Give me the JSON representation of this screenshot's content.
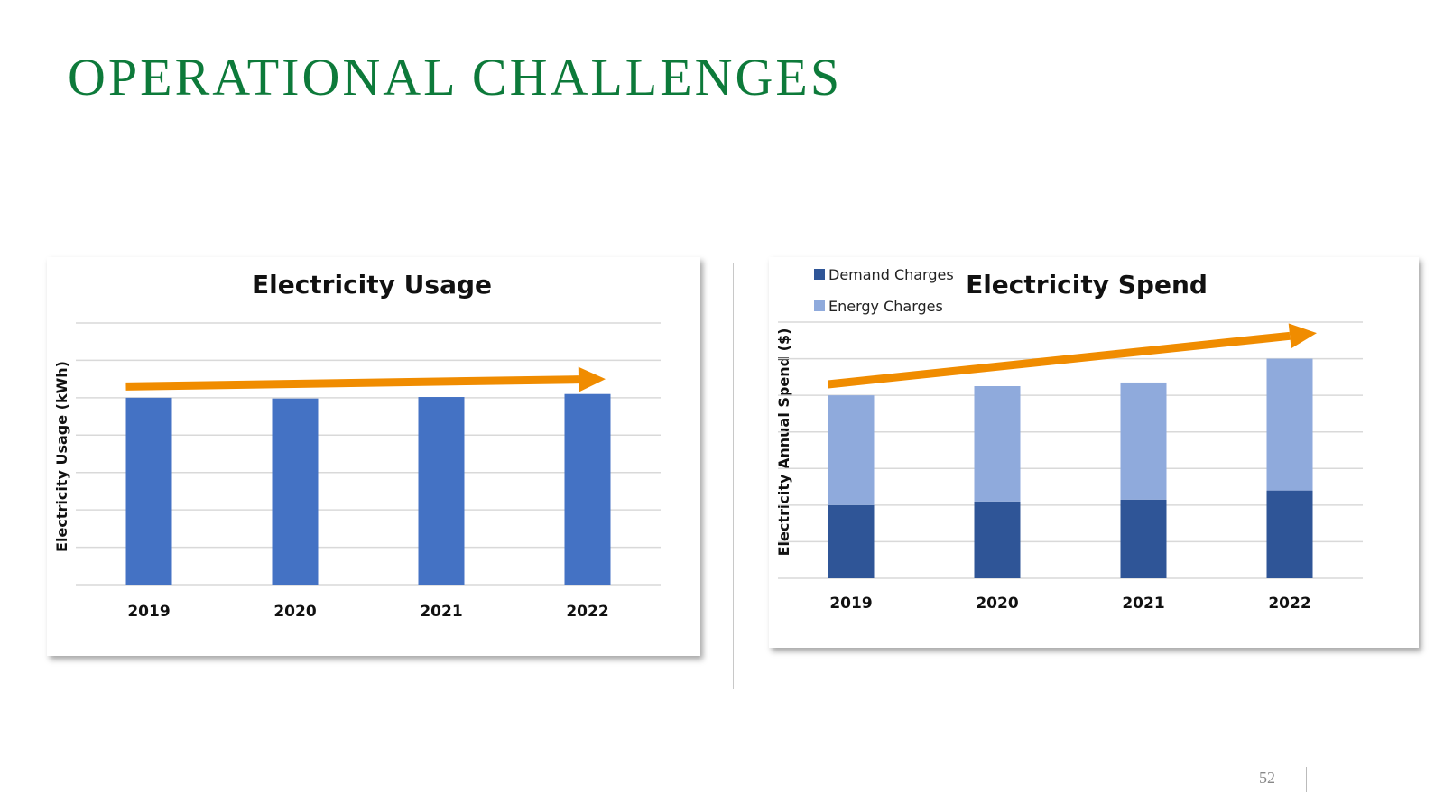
{
  "slide": {
    "title": "OPERATIONAL CHALLENGES",
    "page_number": "52"
  },
  "colors": {
    "title_green": "#0d7a3a",
    "usage_bar": "#4472c4",
    "demand": "#2f5597",
    "energy": "#8faadc",
    "trend_arrow": "#f08c00",
    "grid": "#d9d9d9"
  },
  "chart_data": [
    {
      "id": "usage",
      "type": "bar",
      "title": "Electricity Usage",
      "xlabel": "",
      "ylabel": "Electricity Usage (kWh)",
      "categories": [
        "2019",
        "2020",
        "2021",
        "2022"
      ],
      "values": [
        5.0,
        4.98,
        5.02,
        5.1
      ],
      "ylim": [
        0,
        7
      ],
      "gridlines": 7,
      "y_tick_labels_shown": false,
      "trend_arrow": {
        "from": 5.3,
        "to": 5.5
      }
    },
    {
      "id": "spend",
      "type": "bar",
      "stacked": true,
      "title": "Electricity Spend",
      "xlabel": "",
      "ylabel": "Electricity Annual Spend ($)",
      "categories": [
        "2019",
        "2020",
        "2021",
        "2022"
      ],
      "series": [
        {
          "name": "Demand Charges",
          "values": [
            2.0,
            2.1,
            2.15,
            2.4
          ]
        },
        {
          "name": "Energy Charges",
          "values": [
            3.0,
            3.15,
            3.2,
            3.6
          ]
        }
      ],
      "ylim": [
        0,
        7
      ],
      "gridlines": 7,
      "y_tick_labels_shown": false,
      "legend_position": "top-left",
      "trend_arrow": {
        "from": 5.3,
        "to": 6.7
      }
    }
  ]
}
